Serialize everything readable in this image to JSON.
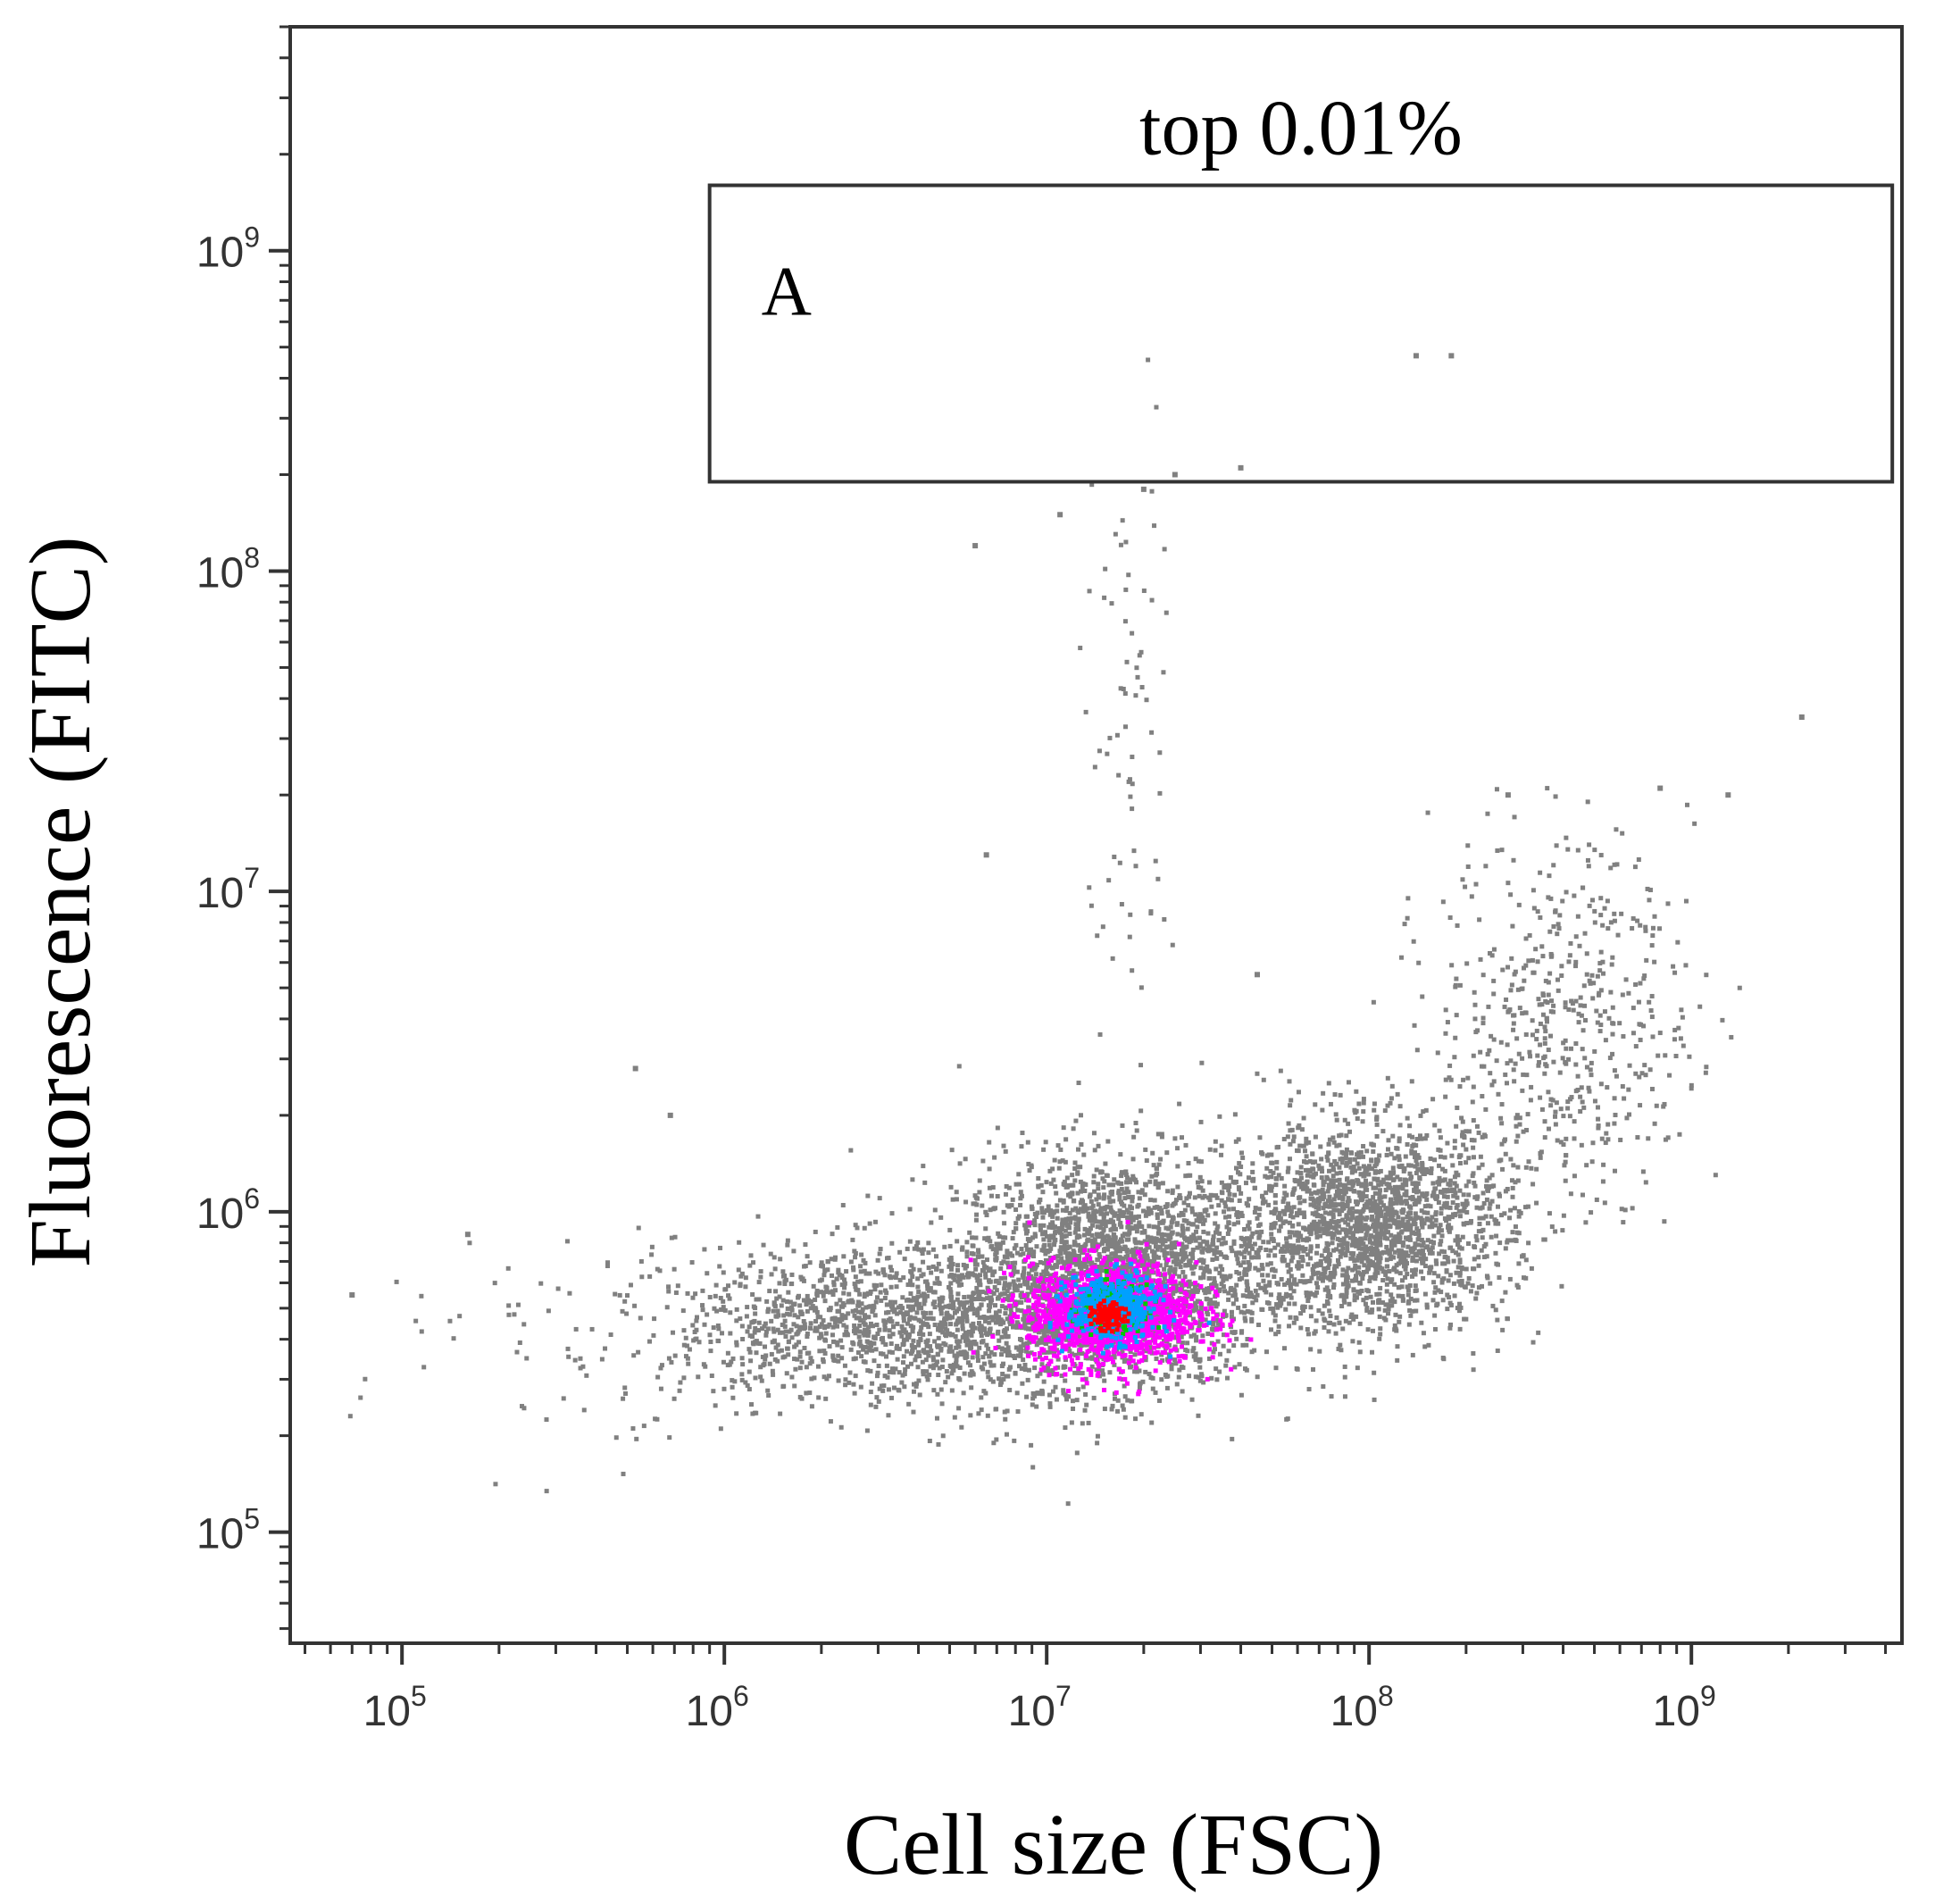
{
  "chart_data": {
    "type": "scatter",
    "subtype": "flow cytometry density dot plot",
    "xlabel": "Cell size (FSC)",
    "ylabel": "Fluorescence (FITC)",
    "x_scale": "log",
    "y_scale": "log",
    "xlim": [
      45000,
      4500000000
    ],
    "ylim": [
      45000,
      5000000000
    ],
    "x_ticks": [
      {
        "value": 100000,
        "base": "10",
        "exp": "5"
      },
      {
        "value": 1000000,
        "base": "10",
        "exp": "6"
      },
      {
        "value": 10000000,
        "base": "10",
        "exp": "7"
      },
      {
        "value": 100000000,
        "base": "10",
        "exp": "8"
      },
      {
        "value": 1000000000,
        "base": "10",
        "exp": "9"
      }
    ],
    "y_ticks": [
      {
        "value": 100000,
        "base": "10",
        "exp": "5"
      },
      {
        "value": 1000000,
        "base": "10",
        "exp": "6"
      },
      {
        "value": 10000000,
        "base": "10",
        "exp": "7"
      },
      {
        "value": 100000000,
        "base": "10",
        "exp": "8"
      },
      {
        "value": 1000000000,
        "base": "10",
        "exp": "9"
      }
    ],
    "gate": {
      "label": "A",
      "title": "top 0.01%",
      "x_range": [
        900000,
        4200000000
      ],
      "y_range": [
        190000000,
        1600000000
      ]
    },
    "density_colors": [
      "#808080",
      "#ff00ff",
      "#00c800",
      "#00a0ff",
      "#ff0000"
    ],
    "populations": [
      {
        "name": "",
        "center": [
          16000000,
          480000
        ],
        "spread_log": [
          0.13,
          0.08
        ],
        "count": 1400,
        "color": "#ff00ff"
      },
      {
        "name": "",
        "center": [
          16000000,
          500000
        ],
        "spread_log": [
          0.07,
          0.05
        ],
        "count": 420,
        "color": "#00a0ff"
      },
      {
        "name": "",
        "center": [
          16000000,
          500000
        ],
        "spread_log": [
          0.045,
          0.035
        ],
        "count": 260,
        "color": "#00c800"
      },
      {
        "name": "",
        "center": [
          15500000,
          470000
        ],
        "spread_log": [
          0.025,
          0.02
        ],
        "count": 110,
        "color": "#ff0000"
      },
      {
        "name": "",
        "center": [
          16000000,
          650000
        ],
        "spread_log": [
          0.24,
          0.18
        ],
        "count": 2400,
        "color": "#808080"
      },
      {
        "name": "",
        "center": [
          4000000,
          450000
        ],
        "spread_log": [
          0.38,
          0.12
        ],
        "count": 1600,
        "color": "#808080"
      },
      {
        "name": "",
        "center": [
          100000000,
          900000
        ],
        "spread_log": [
          0.22,
          0.16
        ],
        "count": 2000,
        "color": "#808080"
      },
      {
        "name": "",
        "center": [
          400000000,
          4000000
        ],
        "spread_log": [
          0.2,
          0.28
        ],
        "count": 520,
        "color": "#808080"
      },
      {
        "name": "",
        "center": [
          18000000,
          30000000
        ],
        "spread_log": [
          0.07,
          0.5
        ],
        "count": 75,
        "color": "#808080"
      },
      {
        "name": "",
        "center": [
          400000,
          350000
        ],
        "spread_log": [
          0.35,
          0.2
        ],
        "count": 80,
        "color": "#808080"
      }
    ],
    "outliers": [
      [
        70000,
        550000
      ],
      [
        160000,
        850000
      ],
      [
        530000,
        2800000
      ],
      [
        680000,
        2000000
      ],
      [
        6500000,
        13000000
      ],
      [
        6000000,
        120000000
      ],
      [
        11000000,
        150000000
      ],
      [
        20000000,
        180000000
      ],
      [
        40000000,
        210000000
      ],
      [
        25000000,
        200000000
      ],
      [
        140000000,
        470000000
      ],
      [
        180000000,
        470000000
      ],
      [
        2200000000,
        35000000
      ],
      [
        1300000000,
        20000000
      ],
      [
        800000000,
        21000000
      ],
      [
        270000000,
        20000000
      ],
      [
        140000000,
        1200000
      ],
      [
        45000000,
        5500000
      ]
    ],
    "grid": false,
    "legend": "none"
  }
}
